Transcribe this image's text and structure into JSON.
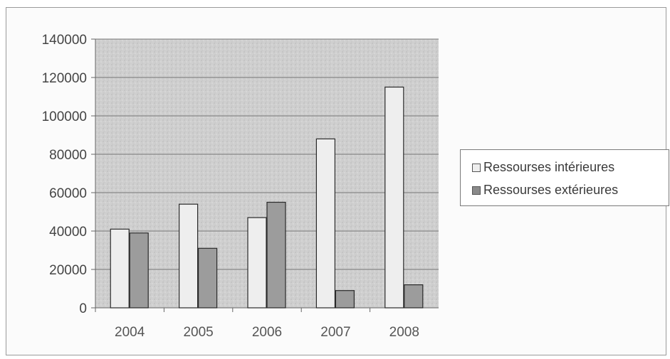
{
  "chart_data": {
    "type": "bar",
    "categories": [
      "2004",
      "2005",
      "2006",
      "2007",
      "2008"
    ],
    "series": [
      {
        "name": "Ressourses intérieures",
        "values": [
          41000,
          54000,
          47000,
          88000,
          115000
        ],
        "color": "#eeeeee"
      },
      {
        "name": "Ressourses extérieures",
        "values": [
          39000,
          31000,
          55000,
          9000,
          12000
        ],
        "color": "#a9a9a9"
      }
    ],
    "ylim": [
      0,
      140000
    ],
    "yticks": [
      "0",
      "20000",
      "40000",
      "60000",
      "80000",
      "100000",
      "120000",
      "140000"
    ],
    "grid": true,
    "legend_position": "right"
  }
}
